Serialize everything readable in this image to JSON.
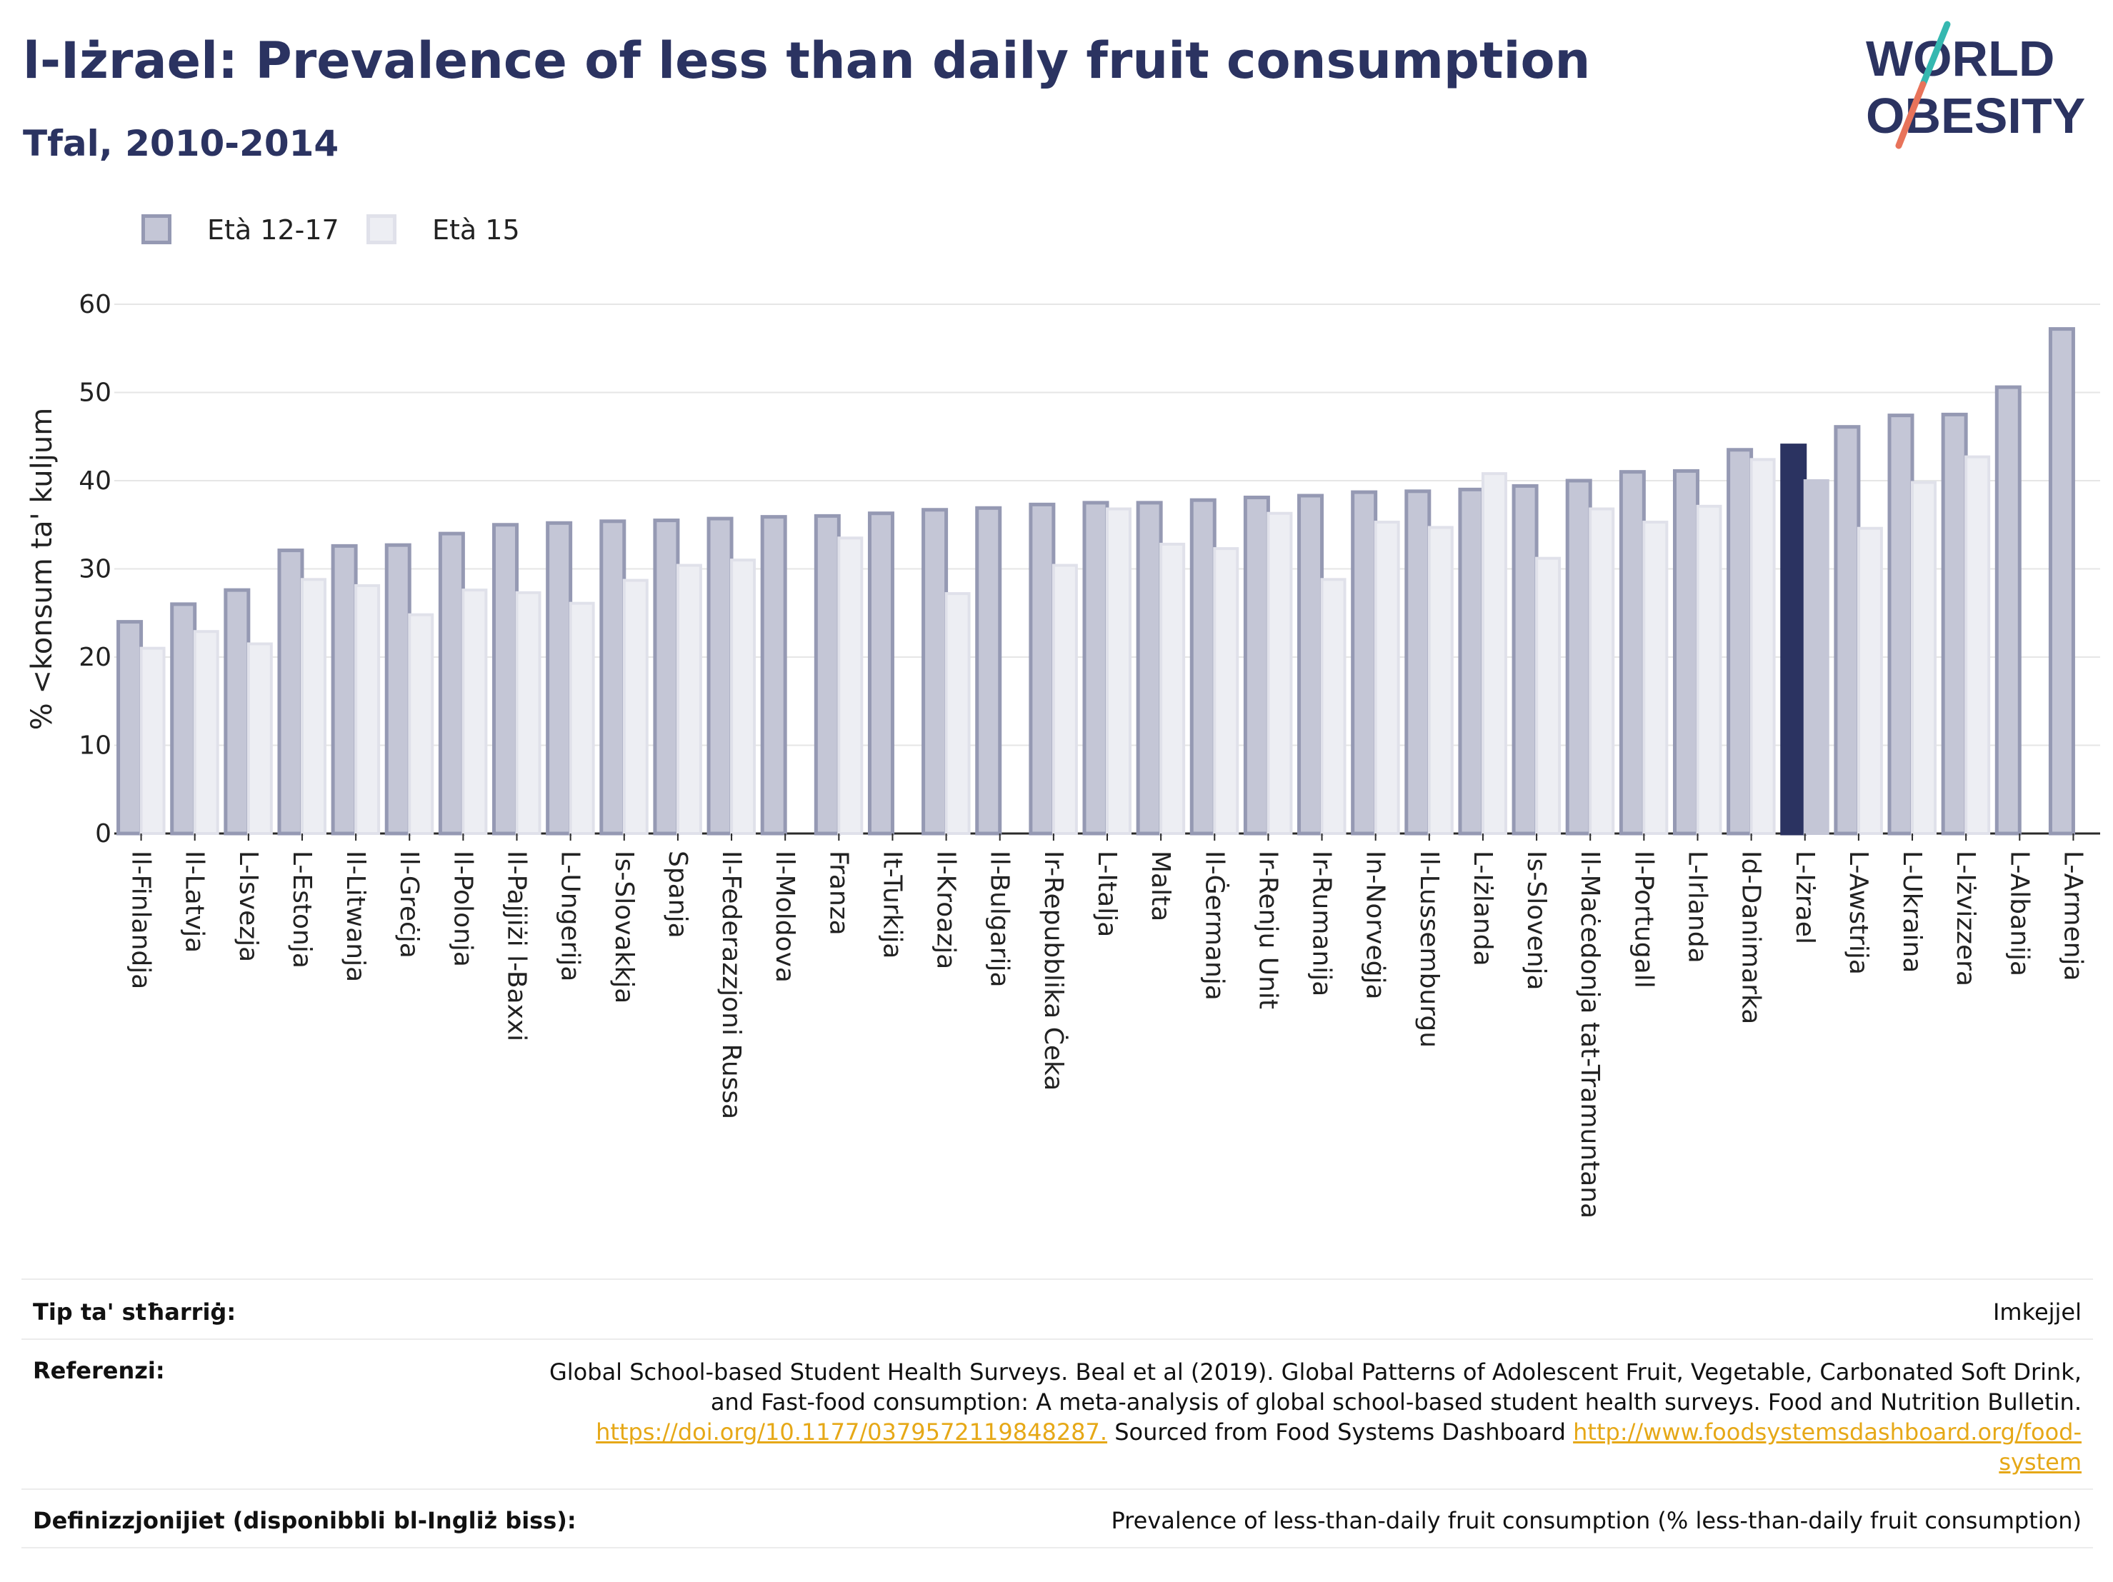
{
  "title": "l-Iżrael: Prevalence of less than daily fruit consumption",
  "subtitle": "Tfal, 2010-2014",
  "logo": {
    "line1": "WORLD",
    "line2": "OBESITY"
  },
  "colors": {
    "dark": "#2b3361",
    "series1_fill": "#c4c6d6",
    "series1_stroke": "#9599b3",
    "series2_fill": "#edeef3",
    "series2_stroke": "#e0e1ea",
    "highlight1": "#2b3361",
    "highlight2": "#c4c6d6",
    "logo_teal": "#35b8b0",
    "logo_coral": "#e8735a",
    "link": "#e6a817"
  },
  "chart_data": {
    "type": "bar",
    "ylabel": "% <konsum ta' kuljum",
    "ylim": [
      0,
      60
    ],
    "yticks": [
      0,
      10,
      20,
      30,
      40,
      50,
      60
    ],
    "grid": true,
    "legend_position": "top-left",
    "highlight": "L-Iżrael",
    "categories": [
      "Il-Finlandja",
      "Il-Latvja",
      "L-Isvezja",
      "L-Estonja",
      "Il-Litwanja",
      "Il-Greċja",
      "Il-Polonja",
      "Il-Pajjiżi l-Baxxi",
      "L-Ungerija",
      "Is-Slovakkja",
      "Spanja",
      "Il-Federazzjoni Russa",
      "Il-Moldova",
      "Franza",
      "It-Turkija",
      "Il-Kroazja",
      "Il-Bulgarija",
      "Ir-Repubblika Ċeka",
      "L-Italja",
      "Malta",
      "Il-Ġermanja",
      "Ir-Renju Unit",
      "Ir-Rumanija",
      "In-Norveġja",
      "Il-Lussemburgu",
      "L-Iżlanda",
      "Is-Slovenja",
      "Il-Maċedonja tat-Tramuntana",
      "Il-Portugall",
      "L-Irlanda",
      "Id-Danimarka",
      "L-Iżrael",
      "L-Awstrija",
      "L-Ukraina",
      "L-Iżvizzera",
      "L-Albanija",
      "L-Armenja"
    ],
    "series": [
      {
        "name": "Età 12-17",
        "values": [
          24,
          26,
          27.6,
          32.1,
          32.6,
          32.7,
          34,
          35,
          35.2,
          35.4,
          35.5,
          35.7,
          35.9,
          36,
          36.3,
          36.7,
          36.9,
          37.3,
          37.5,
          37.5,
          37.8,
          38.1,
          38.3,
          38.7,
          38.8,
          39,
          39.4,
          40,
          41,
          41.1,
          43.5,
          44,
          46.1,
          47.4,
          47.5,
          50.6,
          57.2
        ]
      },
      {
        "name": "Età 15",
        "values": [
          21,
          22.9,
          21.5,
          28.8,
          28.1,
          24.8,
          27.6,
          27.3,
          26.1,
          28.7,
          30.4,
          31,
          null,
          33.5,
          null,
          27.2,
          null,
          30.4,
          36.8,
          32.8,
          32.3,
          36.3,
          28.8,
          35.3,
          34.7,
          40.8,
          31.2,
          36.8,
          35.3,
          37.1,
          42.4,
          40,
          34.6,
          39.8,
          42.7,
          null,
          null
        ]
      }
    ]
  },
  "footer": {
    "source_type_label": "Tip ta' stħarriġ:",
    "source_type_value": "Imkejjel",
    "references_label": "Referenzi:",
    "references_line1": "Global School-based Student Health Surveys. Beal et al (2019). Global Patterns of Adolescent Fruit, Vegetable, Carbonated Soft Drink,",
    "references_line2": "and Fast-food consumption: A meta-analysis of global school-based student health surveys. Food and Nutrition Bulletin.",
    "references_doi": "https://doi.org/10.1177/0379572119848287.",
    "references_sourced": " Sourced from Food Systems Dashboard ",
    "references_url_part1": "http://www.foodsystemsdashboard.org/food-",
    "references_url_part2": "system",
    "definitions_label": "Definizzjonijiet (disponibbli bl-Ingliż biss):",
    "definitions_value": "Prevalence of less-than-daily fruit consumption (% less-than-daily fruit consumption)"
  }
}
